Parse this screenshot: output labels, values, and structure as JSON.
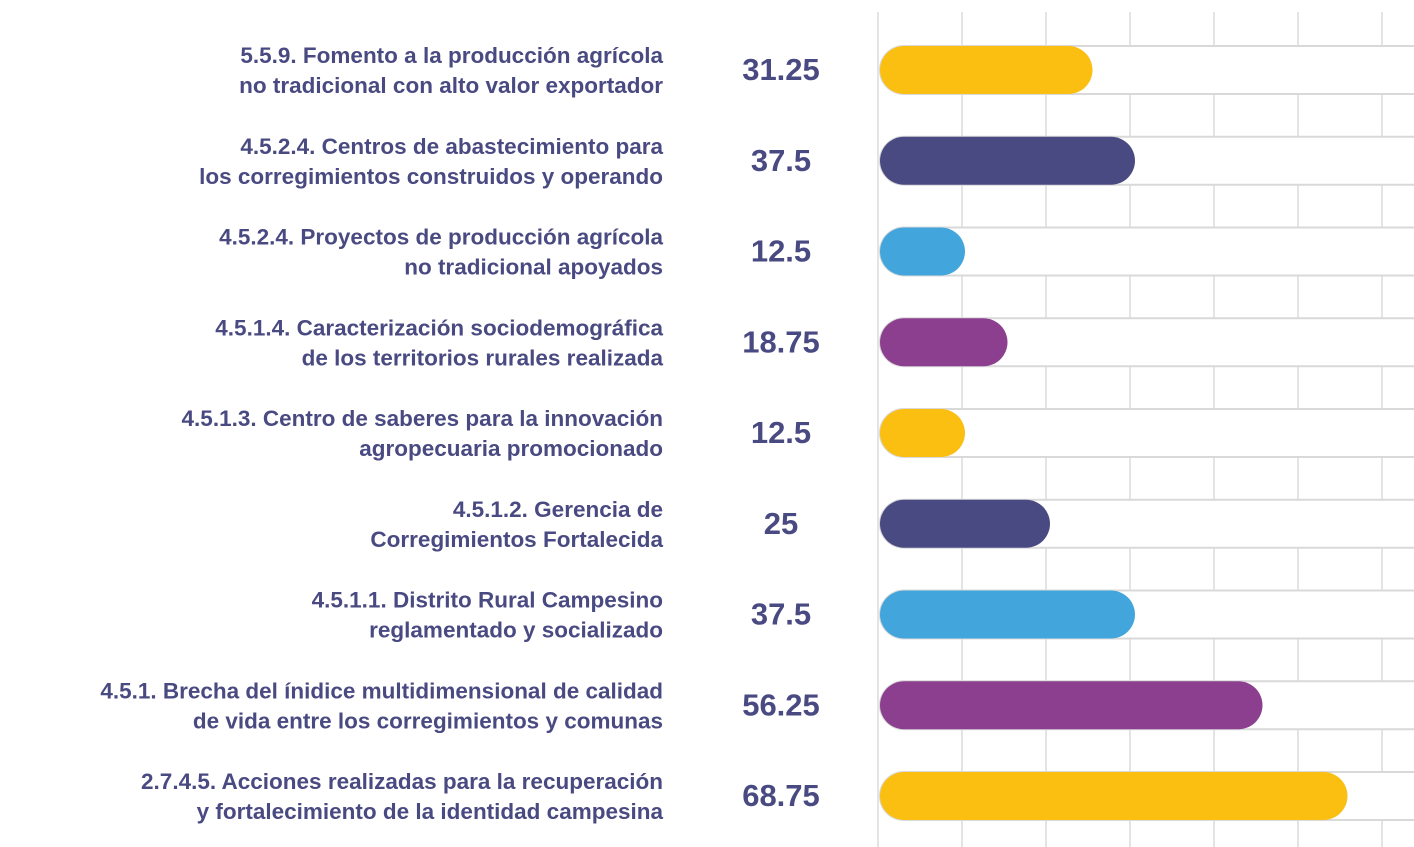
{
  "chart_data": {
    "type": "bar",
    "categories": [
      [
        "5.5.9. Fomento a la producción agrícola",
        "no tradicional con alto valor exportador"
      ],
      [
        "4.5.2.4. Centros de abastecimiento para",
        "los corregimientos construidos y operando"
      ],
      [
        "4.5.2.4. Proyectos de producción agrícola",
        "no tradicional apoyados"
      ],
      [
        "4.5.1.4. Caracterización sociodemográfica",
        "de los territorios rurales realizada"
      ],
      [
        "4.5.1.3. Centro de saberes para la innovación",
        "agropecuaria promocionado"
      ],
      [
        "4.5.1.2. Gerencia de",
        "Corregimientos Fortalecida"
      ],
      [
        "4.5.1.1. Distrito Rural Campesino",
        "reglamentado y socializado"
      ],
      [
        "4.5.1. Brecha del ínidice multidimensional de calidad",
        "de vida entre los corregimientos y comunas"
      ],
      [
        "2.7.4.5. Acciones realizadas para la recuperación",
        "y fortalecimiento de la identidad campesina"
      ]
    ],
    "values": [
      31.25,
      37.5,
      12.5,
      18.75,
      12.5,
      25,
      37.5,
      56.25,
      68.75
    ],
    "colors": [
      "#fbbf12",
      "#4a4a82",
      "#42a5dc",
      "#8c3f8e",
      "#fbbf12",
      "#4a4a82",
      "#42a5dc",
      "#8c3f8e",
      "#fbbf12"
    ]
  }
}
